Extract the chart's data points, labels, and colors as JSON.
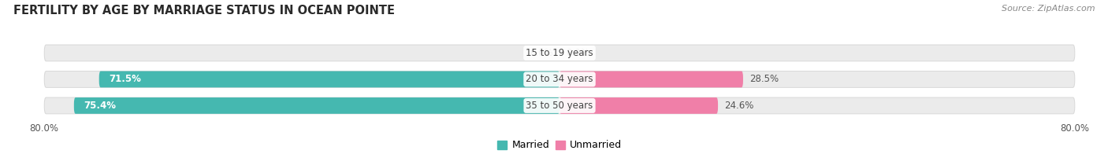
{
  "title": "FERTILITY BY AGE BY MARRIAGE STATUS IN OCEAN POINTE",
  "source": "Source: ZipAtlas.com",
  "categories": [
    "15 to 19 years",
    "20 to 34 years",
    "35 to 50 years"
  ],
  "married_pct": [
    0.0,
    71.5,
    75.4
  ],
  "unmarried_pct": [
    0.0,
    28.5,
    24.6
  ],
  "married_color": "#45b8b0",
  "unmarried_color": "#f07fa8",
  "bar_bg_color": "#ebebeb",
  "bar_height": 0.62,
  "xlim_left": -80.0,
  "xlim_right": 80.0,
  "title_fontsize": 10.5,
  "label_fontsize": 8.5,
  "tick_fontsize": 8.5,
  "source_fontsize": 8,
  "legend_fontsize": 9,
  "center_label_color": "#444444",
  "pct_label_color_inside": "#ffffff",
  "pct_label_color_outside": "#555555",
  "background_color": "#ffffff",
  "axis_bg_color": "#ffffff",
  "bar_edge_color": "#d8d8d8",
  "row_bg_color": "#f4f4f4"
}
